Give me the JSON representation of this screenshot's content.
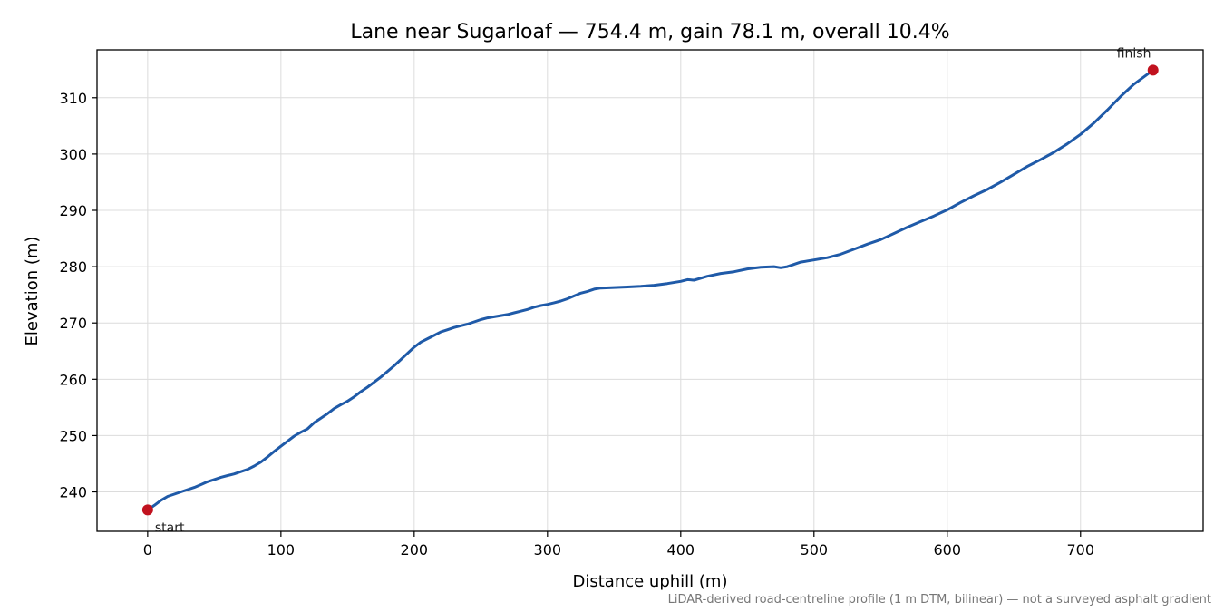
{
  "chart_data": {
    "type": "line",
    "title": "Lane near Sugarloaf — 754.4 m, gain 78.1 m, overall 10.4%",
    "xlabel": "Distance uphill (m)",
    "ylabel": "Elevation (m)",
    "xlim": [
      -38,
      792
    ],
    "ylim": [
      233,
      318.5
    ],
    "xticks": [
      0,
      100,
      200,
      300,
      400,
      500,
      600,
      700
    ],
    "yticks": [
      240,
      250,
      260,
      270,
      280,
      290,
      300,
      310
    ],
    "grid": true,
    "footnote": "LiDAR-derived road-centreline profile (1 m DTM, bilinear) — not a surveyed asphalt gradient",
    "series": [
      {
        "color": "#1f5aa8",
        "x": [
          0,
          5,
          10,
          15,
          20,
          25,
          30,
          35,
          40,
          45,
          50,
          55,
          60,
          65,
          70,
          75,
          80,
          85,
          90,
          95,
          100,
          105,
          110,
          115,
          120,
          125,
          130,
          135,
          140,
          145,
          150,
          155,
          160,
          165,
          170,
          175,
          180,
          185,
          190,
          195,
          200,
          205,
          210,
          215,
          220,
          225,
          230,
          235,
          240,
          245,
          250,
          255,
          260,
          265,
          270,
          275,
          280,
          285,
          290,
          295,
          300,
          305,
          310,
          315,
          320,
          325,
          330,
          335,
          340,
          350,
          360,
          370,
          380,
          390,
          400,
          405,
          410,
          420,
          430,
          440,
          450,
          460,
          470,
          475,
          480,
          490,
          500,
          510,
          520,
          530,
          540,
          550,
          560,
          570,
          580,
          590,
          600,
          610,
          620,
          630,
          640,
          650,
          660,
          670,
          680,
          690,
          700,
          710,
          720,
          730,
          740,
          754.4
        ],
        "y": [
          236.8,
          237.6,
          238.5,
          239.2,
          239.6,
          240.0,
          240.4,
          240.8,
          241.3,
          241.8,
          242.2,
          242.6,
          242.9,
          243.2,
          243.6,
          244.0,
          244.6,
          245.3,
          246.2,
          247.2,
          248.1,
          249.0,
          249.9,
          250.6,
          251.2,
          252.3,
          253.1,
          253.9,
          254.8,
          255.5,
          256.1,
          256.9,
          257.8,
          258.6,
          259.5,
          260.4,
          261.4,
          262.4,
          263.5,
          264.6,
          265.7,
          266.6,
          267.2,
          267.8,
          268.4,
          268.8,
          269.2,
          269.5,
          269.8,
          270.2,
          270.6,
          270.9,
          271.1,
          271.3,
          271.5,
          271.8,
          272.1,
          272.4,
          272.8,
          273.1,
          273.3,
          273.6,
          273.9,
          274.3,
          274.8,
          275.3,
          275.6,
          276.0,
          276.2,
          276.3,
          276.4,
          276.5,
          276.7,
          277.0,
          277.4,
          277.7,
          277.6,
          278.3,
          278.8,
          279.1,
          279.6,
          279.9,
          280.0,
          279.8,
          280.0,
          280.8,
          281.2,
          281.6,
          282.2,
          283.1,
          284.0,
          284.8,
          285.9,
          287.0,
          288.0,
          289.0,
          290.1,
          291.4,
          292.6,
          293.7,
          295.0,
          296.4,
          297.8,
          299.0,
          300.3,
          301.8,
          303.5,
          305.5,
          307.8,
          310.2,
          312.4,
          314.9
        ]
      }
    ],
    "annotations": [
      {
        "text": "start",
        "x": 0,
        "y": 236.8
      },
      {
        "text": "finish",
        "x": 754.4,
        "y": 314.9
      }
    ]
  }
}
